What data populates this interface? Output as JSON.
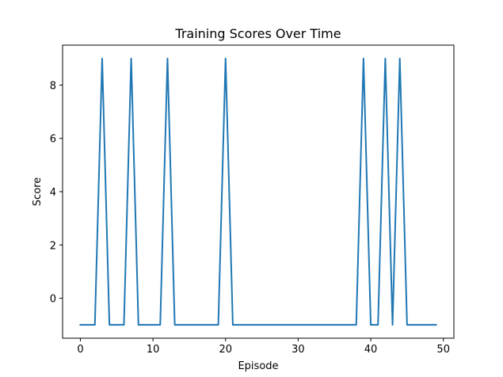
{
  "chart_data": {
    "type": "line",
    "title": "Training Scores Over Time",
    "xlabel": "Episode",
    "ylabel": "Score",
    "xlim": [
      -2.45,
      51.45
    ],
    "ylim": [
      -1.5,
      9.5
    ],
    "xticks": [
      0,
      10,
      20,
      30,
      40,
      50
    ],
    "yticks": [
      0,
      2,
      4,
      6,
      8
    ],
    "grid": false,
    "line_color": "#1f77b4",
    "series": [
      {
        "x": [
          0,
          1,
          2,
          3,
          4,
          5,
          6,
          7,
          8,
          9,
          10,
          11,
          12,
          13,
          14,
          15,
          16,
          17,
          18,
          19,
          20,
          21,
          22,
          23,
          24,
          25,
          26,
          27,
          28,
          29,
          30,
          31,
          32,
          33,
          34,
          35,
          36,
          37,
          38,
          39,
          40,
          41,
          42,
          43,
          44,
          45,
          46,
          47,
          48,
          49
        ],
        "values": [
          -1,
          -1,
          -1,
          9,
          -1,
          -1,
          -1,
          9,
          -1,
          -1,
          -1,
          -1,
          9,
          -1,
          -1,
          -1,
          -1,
          -1,
          -1,
          -1,
          9,
          -1,
          -1,
          -1,
          -1,
          -1,
          -1,
          -1,
          -1,
          -1,
          -1,
          -1,
          -1,
          -1,
          -1,
          -1,
          -1,
          -1,
          -1,
          9,
          -1,
          -1,
          9,
          -1,
          9,
          -1,
          -1,
          -1,
          -1,
          -1
        ]
      }
    ]
  }
}
